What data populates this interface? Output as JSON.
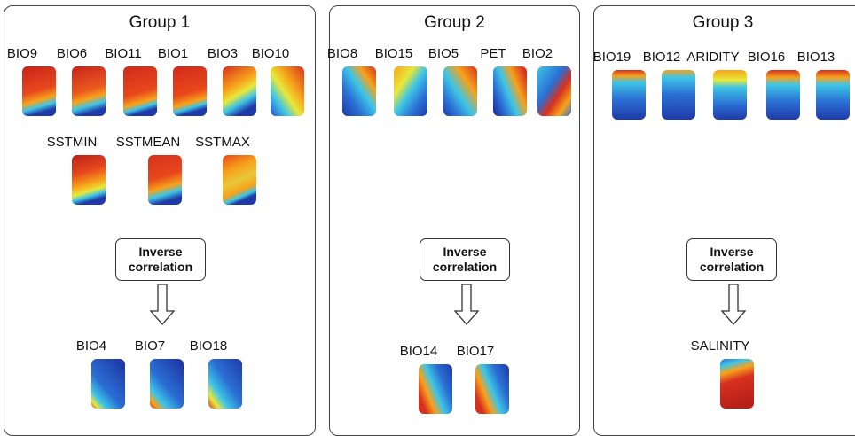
{
  "groups": [
    {
      "title": "Group 1",
      "top_row": [
        "BIO9",
        "BIO6",
        "BIO11",
        "BIO1",
        "BIO3",
        "BIO10"
      ],
      "second_row": [
        "SSTMIN",
        "SSTMEAN",
        "SSTMAX"
      ],
      "inverse_label": "Inverse correlation",
      "inverse_row": [
        "BIO4",
        "BIO7",
        "BIO18"
      ]
    },
    {
      "title": "Group 2",
      "top_row": [
        "BIO8",
        "BIO15",
        "BIO5",
        "PET",
        "BIO2"
      ],
      "inverse_label": "Inverse correlation",
      "inverse_row": [
        "BIO14",
        "BIO17"
      ]
    },
    {
      "title": "Group 3",
      "top_row": [
        "BIO19",
        "BIO12",
        "ARIDITY",
        "BIO16",
        "BIO13"
      ],
      "inverse_label": "Inverse correlation",
      "inverse_row": [
        "SALINITY"
      ]
    }
  ],
  "colors": {
    "high": "#d7301f",
    "mid_high": "#f7a21b",
    "mid": "#e8e83a",
    "mid_low": "#3ec5e6",
    "low": "#1f3aa8",
    "border": "#444444"
  }
}
